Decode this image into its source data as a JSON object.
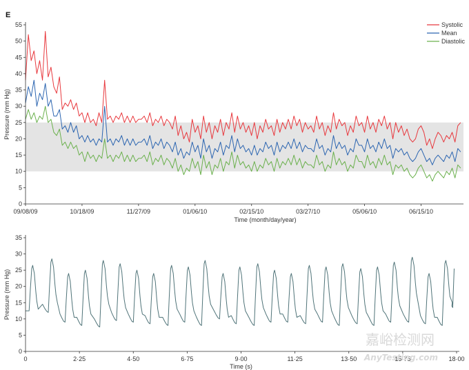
{
  "watermark": {
    "line1": "嘉峪检测网",
    "line2": "AnyTesting.com"
  },
  "colors": {
    "systolic": "#e8383d",
    "mean": "#2a64b0",
    "diastolic": "#6ab04c",
    "waveform": "#4f7378",
    "band": "#e4e4e4",
    "axis": "#333333"
  },
  "chart_data": [
    {
      "type": "line",
      "panel_label": "E",
      "title": "",
      "xlabel": "Time (month/day/year)",
      "ylabel": "Pressure (mm Hg)",
      "xlim": [
        0,
        310
      ],
      "x_ticks": [
        0,
        40,
        80,
        120,
        160,
        200,
        240,
        280
      ],
      "x_tick_labels": [
        "09/08/09",
        "10/18/09",
        "11/27/09",
        "01/06/10",
        "02/15/10",
        "03/27/10",
        "05/06/10",
        "06/15/10"
      ],
      "ylim": [
        0,
        55
      ],
      "y_ticks": [
        0,
        5,
        10,
        15,
        20,
        25,
        30,
        35,
        40,
        45,
        50,
        55
      ],
      "shaded_band": [
        10,
        25
      ],
      "legend_position": "top-right",
      "x": [
        0,
        2,
        4,
        6,
        8,
        10,
        12,
        14,
        16,
        18,
        20,
        22,
        24,
        26,
        28,
        30,
        32,
        34,
        36,
        38,
        40,
        42,
        44,
        46,
        48,
        50,
        52,
        54,
        56,
        58,
        60,
        62,
        64,
        66,
        68,
        70,
        72,
        74,
        76,
        78,
        80,
        82,
        84,
        86,
        88,
        90,
        92,
        94,
        96,
        98,
        100,
        102,
        104,
        106,
        108,
        110,
        112,
        114,
        116,
        118,
        120,
        122,
        124,
        126,
        128,
        130,
        132,
        134,
        136,
        138,
        140,
        142,
        144,
        146,
        148,
        150,
        152,
        154,
        156,
        158,
        160,
        162,
        164,
        166,
        168,
        170,
        172,
        174,
        176,
        178,
        180,
        182,
        184,
        186,
        188,
        190,
        192,
        194,
        196,
        198,
        200,
        202,
        204,
        206,
        208,
        210,
        212,
        214,
        216,
        218,
        220,
        222,
        224,
        226,
        228,
        230,
        232,
        234,
        236,
        238,
        240,
        242,
        244,
        246,
        248,
        250,
        252,
        254,
        256,
        258,
        260,
        262,
        264,
        266,
        268,
        270,
        272,
        274,
        276,
        278,
        280,
        282,
        284,
        286,
        288,
        290,
        292,
        294,
        296,
        298,
        300,
        302,
        304,
        306,
        308
      ],
      "series": [
        {
          "name": "Systolic",
          "values": [
            38,
            52,
            44,
            47,
            40,
            44,
            38,
            53,
            39,
            42,
            36,
            34,
            39,
            29,
            31,
            30,
            32,
            29,
            31,
            27,
            28,
            25,
            28,
            25,
            26,
            24,
            28,
            25,
            38,
            26,
            27,
            25,
            27,
            26,
            28,
            25,
            27,
            25,
            27,
            25,
            26,
            26,
            27,
            25,
            28,
            24,
            26,
            25,
            27,
            24,
            26,
            25,
            23,
            27,
            21,
            24,
            20,
            22,
            19,
            26,
            22,
            24,
            20,
            27,
            22,
            25,
            20,
            24,
            22,
            26,
            21,
            25,
            23,
            28,
            22,
            27,
            23,
            25,
            22,
            24,
            21,
            25,
            20,
            24,
            22,
            26,
            23,
            24,
            21,
            26,
            22,
            25,
            23,
            26,
            23,
            27,
            24,
            26,
            22,
            25,
            23,
            24,
            22,
            27,
            23,
            25,
            21,
            24,
            22,
            28,
            23,
            26,
            24,
            25,
            21,
            24,
            22,
            27,
            24,
            25,
            22,
            27,
            23,
            25,
            22,
            26,
            24,
            27,
            23,
            25,
            20,
            25,
            22,
            24,
            21,
            23,
            20,
            19,
            20,
            23,
            24,
            22,
            18,
            20,
            17,
            20,
            22,
            21,
            19,
            21,
            20,
            22,
            19,
            24,
            25
          ]
        },
        {
          "name": "Mean",
          "values": [
            31,
            36,
            33,
            38,
            30,
            34,
            32,
            37,
            30,
            32,
            27,
            27,
            29,
            23,
            24,
            22,
            25,
            22,
            24,
            20,
            21,
            19,
            21,
            19,
            20,
            18,
            20,
            19,
            30,
            19,
            20,
            18,
            20,
            19,
            21,
            18,
            20,
            18,
            20,
            18,
            19,
            19,
            20,
            18,
            21,
            17,
            19,
            18,
            20,
            17,
            19,
            18,
            16,
            19,
            15,
            17,
            14,
            16,
            15,
            19,
            16,
            18,
            14,
            20,
            16,
            18,
            14,
            17,
            16,
            19,
            15,
            18,
            17,
            21,
            16,
            20,
            17,
            18,
            16,
            17,
            15,
            18,
            15,
            17,
            16,
            19,
            17,
            18,
            15,
            19,
            16,
            18,
            17,
            19,
            17,
            20,
            17,
            19,
            16,
            18,
            17,
            17,
            16,
            20,
            17,
            18,
            15,
            17,
            16,
            21,
            17,
            19,
            17,
            18,
            15,
            17,
            16,
            20,
            18,
            18,
            16,
            20,
            17,
            18,
            16,
            19,
            17,
            20,
            17,
            18,
            14,
            17,
            16,
            17,
            15,
            16,
            14,
            13,
            14,
            16,
            17,
            15,
            13,
            14,
            12,
            14,
            15,
            14,
            13,
            15,
            14,
            16,
            13,
            17,
            16
          ]
        },
        {
          "name": "Diastolic",
          "values": [
            26,
            29,
            26,
            28,
            25,
            27,
            26,
            30,
            25,
            26,
            22,
            21,
            23,
            18,
            19,
            17,
            19,
            17,
            18,
            15,
            16,
            13,
            16,
            14,
            15,
            13,
            15,
            14,
            20,
            14,
            15,
            13,
            15,
            14,
            16,
            13,
            15,
            13,
            15,
            13,
            14,
            14,
            15,
            13,
            16,
            12,
            14,
            13,
            15,
            12,
            14,
            13,
            11,
            14,
            10,
            12,
            9,
            11,
            10,
            14,
            11,
            13,
            9,
            15,
            11,
            13,
            9,
            12,
            11,
            14,
            10,
            13,
            12,
            16,
            11,
            15,
            12,
            13,
            11,
            12,
            10,
            13,
            10,
            12,
            11,
            14,
            12,
            13,
            10,
            14,
            11,
            13,
            12,
            14,
            12,
            15,
            12,
            14,
            11,
            13,
            12,
            12,
            11,
            15,
            12,
            13,
            10,
            12,
            11,
            16,
            12,
            14,
            12,
            13,
            10,
            12,
            11,
            15,
            13,
            13,
            11,
            15,
            12,
            13,
            11,
            14,
            12,
            15,
            12,
            13,
            9,
            12,
            11,
            12,
            10,
            11,
            9,
            8,
            9,
            11,
            12,
            10,
            8,
            9,
            7,
            9,
            10,
            9,
            8,
            10,
            9,
            11,
            8,
            12,
            11
          ]
        }
      ]
    },
    {
      "type": "line",
      "title": "",
      "xlabel": "Time (s)",
      "ylabel": "Pressure (mm Hg)",
      "xlim": [
        0,
        18
      ],
      "x_ticks": [
        0,
        2.25,
        4.5,
        6.75,
        9,
        11.25,
        13.5,
        15.75,
        18
      ],
      "x_tick_labels": [
        "0",
        "2·25",
        "4·50",
        "6·75",
        "9·00",
        "11·25",
        "13·50",
        "15·75",
        "18·00"
      ],
      "ylim": [
        0,
        35
      ],
      "y_ticks": [
        0,
        5,
        10,
        15,
        20,
        25,
        30,
        35
      ],
      "beat_times": [
        0.15,
        0.95,
        1.65,
        2.35,
        3.1,
        3.8,
        4.5,
        5.2,
        5.95,
        6.65,
        7.35,
        8.1,
        8.8,
        9.55,
        10.25,
        10.95,
        11.7,
        12.4,
        13.1,
        13.85,
        14.55,
        15.25,
        16.0,
        16.7,
        17.4
      ],
      "peak_values": [
        26.5,
        28.5,
        24,
        25,
        28,
        27,
        25,
        24,
        26.5,
        26,
        28,
        24,
        26,
        27,
        25,
        24,
        26.5,
        26,
        27,
        25.5,
        26,
        27.5,
        29,
        24,
        28
      ],
      "trough_values": [
        12,
        9,
        8,
        7.5,
        9.5,
        9,
        8.5,
        8,
        9,
        8,
        10,
        8.5,
        8,
        9,
        9,
        8.5,
        9,
        8,
        8.5,
        8,
        9,
        9,
        8.5,
        8,
        14
      ],
      "end_value": 25.5
    }
  ]
}
